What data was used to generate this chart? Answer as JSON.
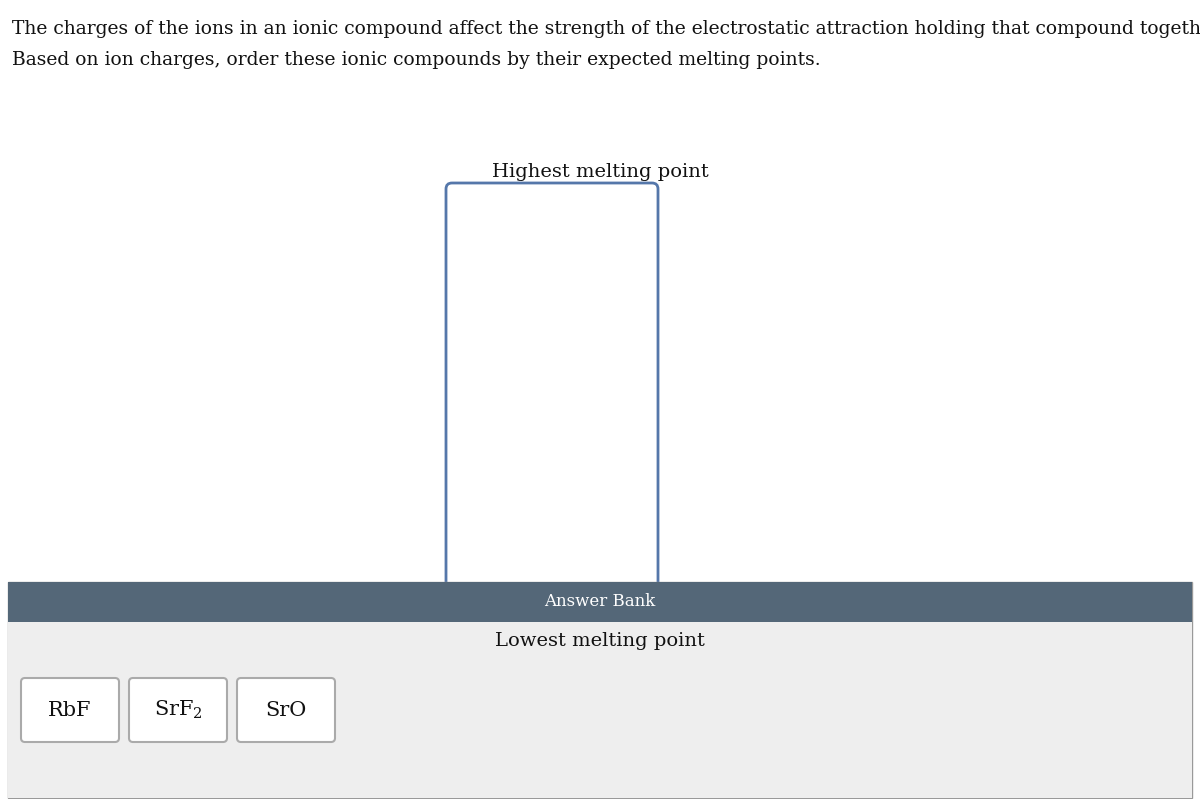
{
  "title_line1": "The charges of the ions in an ionic compound affect the strength of the electrostatic attraction holding that compound together.",
  "title_line2": "Based on ion charges, order these ionic compounds by their expected melting points.",
  "highest_label": "Highest melting point",
  "lowest_label": "Lowest melting point",
  "answer_bank_label": "Answer Bank",
  "compounds_display": [
    "RbF",
    "SrF",
    "SrO"
  ],
  "compounds_sub": [
    null,
    "2",
    null
  ],
  "header_bg": "#546778",
  "answer_bank_bg": "#eeeeee",
  "card_bg": "#f0f0f0",
  "card_border": "#aaaaaa",
  "main_box_border": "#5577aa",
  "text_color": "#111111",
  "bg_color": "#ffffff",
  "ab_text_color": "#ffffff"
}
